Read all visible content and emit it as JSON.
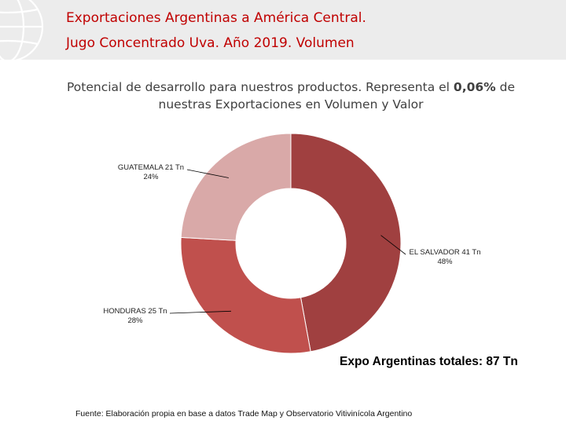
{
  "header": {
    "title_line1": "Exportaciones Argentinas a América Central.",
    "title_line2": "Jugo Concentrado Uva. Año 2019. Volumen"
  },
  "subtitle": {
    "before": "Potencial de desarrollo para nuestros productos. Representa el ",
    "emphasis": "0,06%",
    "after": " de nuestras Exportaciones en Volumen y Valor"
  },
  "chart_data": {
    "type": "pie",
    "variant": "donut",
    "unit": "Tn",
    "slices": [
      {
        "name": "EL SALVADOR",
        "value": 41,
        "label": "EL SALVADOR 41 Tn",
        "percent_label": "48%",
        "color": "#a04040"
      },
      {
        "name": "HONDURAS",
        "value": 25,
        "label": "HONDURAS 25 Tn",
        "percent_label": "28%",
        "color": "#c0504d"
      },
      {
        "name": "GUATEMALA",
        "value": 21,
        "label": "GUATEMALA 21 Tn",
        "percent_label": "24%",
        "color": "#d9a9a8"
      }
    ]
  },
  "total": "Expo Argentinas totales: 87 Tn",
  "source": "Fuente: Elaboración propia en base a datos Trade Map y Observatorio Vitivinícola Argentino",
  "colors": {
    "title": "#c00000",
    "header_band": "#ececec"
  }
}
